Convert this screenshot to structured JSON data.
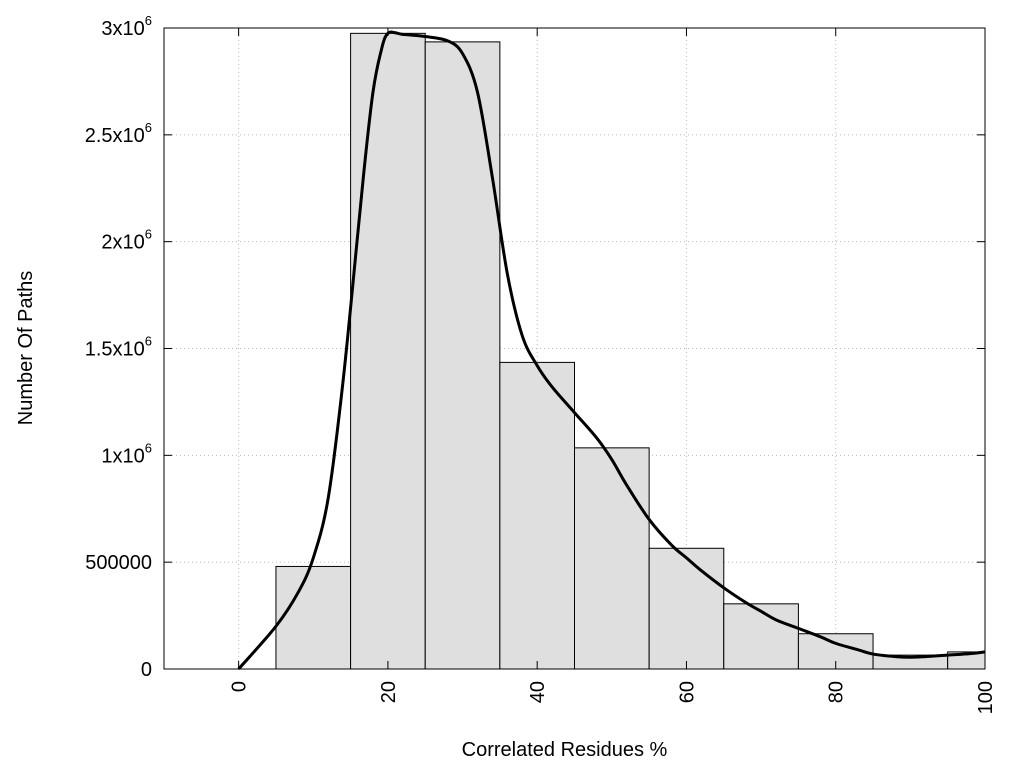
{
  "chart_data": {
    "type": "bar",
    "xlabel": "Correlated Residues %",
    "ylabel": "Number Of Paths",
    "xlim": [
      -10,
      100
    ],
    "ylim": [
      0,
      3000000
    ],
    "grid": true,
    "bars": [
      {
        "x": 10,
        "value": 480000
      },
      {
        "x": 20,
        "value": 2975000
      },
      {
        "x": 30,
        "value": 2935000
      },
      {
        "x": 40,
        "value": 1435000
      },
      {
        "x": 50,
        "value": 1035000
      },
      {
        "x": 60,
        "value": 565000
      },
      {
        "x": 70,
        "value": 305000
      },
      {
        "x": 80,
        "value": 165000
      },
      {
        "x": 90,
        "value": 65000
      },
      {
        "x": 100,
        "value": 80000
      }
    ],
    "bar_width": 10,
    "curve": {
      "x": [
        0,
        5,
        8,
        10,
        12,
        14,
        16,
        17,
        18,
        19,
        20,
        22,
        25,
        28,
        30,
        32,
        34,
        36,
        38,
        40,
        42,
        45,
        48,
        50,
        52,
        55,
        58,
        60,
        62,
        65,
        68,
        70,
        72,
        75,
        78,
        80,
        83,
        85,
        88,
        90,
        92,
        95,
        98,
        100
      ],
      "y": [
        0,
        200000,
        360000,
        520000,
        800000,
        1350000,
        2050000,
        2400000,
        2700000,
        2880000,
        2975000,
        2970000,
        2960000,
        2940000,
        2880000,
        2700000,
        2300000,
        1850000,
        1560000,
        1420000,
        1320000,
        1200000,
        1080000,
        980000,
        860000,
        700000,
        580000,
        520000,
        460000,
        380000,
        310000,
        270000,
        230000,
        190000,
        150000,
        120000,
        90000,
        70000,
        58000,
        55000,
        58000,
        65000,
        72000,
        80000
      ]
    },
    "x_ticks": [
      {
        "value": 0,
        "label": "0"
      },
      {
        "value": 20,
        "label": "20"
      },
      {
        "value": 40,
        "label": "40"
      },
      {
        "value": 60,
        "label": "60"
      },
      {
        "value": 80,
        "label": "80"
      },
      {
        "value": 100,
        "label": "100"
      }
    ],
    "y_ticks": [
      {
        "value": 0,
        "base": "0",
        "exp": ""
      },
      {
        "value": 500000,
        "base": "500000",
        "exp": ""
      },
      {
        "value": 1000000,
        "base": "1x10",
        "exp": "6"
      },
      {
        "value": 1500000,
        "base": "1.5x10",
        "exp": "6"
      },
      {
        "value": 2000000,
        "base": "2x10",
        "exp": "6"
      },
      {
        "value": 2500000,
        "base": "2.5x10",
        "exp": "6"
      },
      {
        "value": 3000000,
        "base": "3x10",
        "exp": "6"
      }
    ]
  }
}
